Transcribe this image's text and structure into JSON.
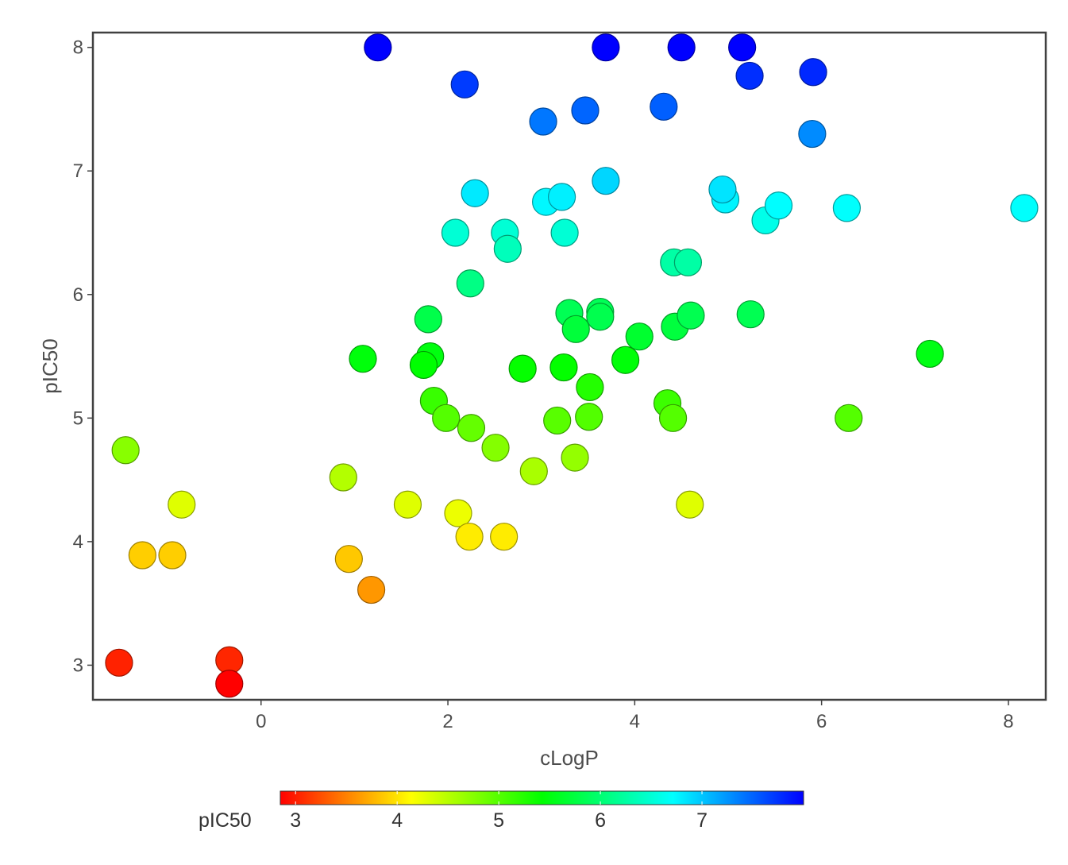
{
  "chart_data": {
    "type": "scatter",
    "xlabel": "cLogP",
    "ylabel": "pIC50",
    "xlim": [
      -1.8,
      8.4
    ],
    "ylim": [
      2.72,
      8.12
    ],
    "x_ticks": [
      0,
      2,
      4,
      6,
      8
    ],
    "y_ticks": [
      3,
      4,
      5,
      6,
      7,
      8
    ],
    "grid": false,
    "colorbar": {
      "label": "pIC50",
      "range": [
        2.85,
        8.0
      ],
      "ticks": [
        3,
        4,
        5,
        6,
        7
      ],
      "colors": [
        "#ff0000",
        "#ffff00",
        "#00ff00",
        "#00ffff",
        "#0000ff"
      ],
      "placement": "bottom"
    },
    "points": [
      {
        "x": 1.25,
        "y": 8.0
      },
      {
        "x": 3.69,
        "y": 8.0
      },
      {
        "x": 4.5,
        "y": 8.0
      },
      {
        "x": 5.15,
        "y": 8.0
      },
      {
        "x": 2.18,
        "y": 7.7
      },
      {
        "x": 5.23,
        "y": 7.77
      },
      {
        "x": 5.91,
        "y": 7.8
      },
      {
        "x": 3.02,
        "y": 7.4
      },
      {
        "x": 3.47,
        "y": 7.49
      },
      {
        "x": 4.31,
        "y": 7.52
      },
      {
        "x": 5.9,
        "y": 7.3
      },
      {
        "x": 2.29,
        "y": 6.82
      },
      {
        "x": 3.05,
        "y": 6.75
      },
      {
        "x": 3.22,
        "y": 6.79
      },
      {
        "x": 3.69,
        "y": 6.92
      },
      {
        "x": 4.97,
        "y": 6.77
      },
      {
        "x": 4.94,
        "y": 6.85
      },
      {
        "x": 5.4,
        "y": 6.6
      },
      {
        "x": 5.54,
        "y": 6.72
      },
      {
        "x": 6.27,
        "y": 6.7
      },
      {
        "x": 8.17,
        "y": 6.7
      },
      {
        "x": 2.08,
        "y": 6.5
      },
      {
        "x": 2.61,
        "y": 6.5
      },
      {
        "x": 2.64,
        "y": 6.37
      },
      {
        "x": 3.25,
        "y": 6.5
      },
      {
        "x": 4.42,
        "y": 6.26
      },
      {
        "x": 4.57,
        "y": 6.26
      },
      {
        "x": 2.24,
        "y": 6.09
      },
      {
        "x": 1.79,
        "y": 5.8
      },
      {
        "x": 3.3,
        "y": 5.85
      },
      {
        "x": 3.37,
        "y": 5.72
      },
      {
        "x": 3.63,
        "y": 5.86
      },
      {
        "x": 3.63,
        "y": 5.82
      },
      {
        "x": 4.05,
        "y": 5.66
      },
      {
        "x": 4.43,
        "y": 5.74
      },
      {
        "x": 4.6,
        "y": 5.83
      },
      {
        "x": 5.24,
        "y": 5.84
      },
      {
        "x": 1.09,
        "y": 5.48
      },
      {
        "x": 1.81,
        "y": 5.5
      },
      {
        "x": 1.74,
        "y": 5.43
      },
      {
        "x": 2.8,
        "y": 5.4
      },
      {
        "x": 3.24,
        "y": 5.41
      },
      {
        "x": 3.9,
        "y": 5.47
      },
      {
        "x": 3.52,
        "y": 5.25
      },
      {
        "x": 7.16,
        "y": 5.52
      },
      {
        "x": 1.85,
        "y": 5.14
      },
      {
        "x": 1.98,
        "y": 5.0
      },
      {
        "x": 2.25,
        "y": 4.92
      },
      {
        "x": 3.17,
        "y": 4.98
      },
      {
        "x": 3.51,
        "y": 5.01
      },
      {
        "x": 4.35,
        "y": 5.12
      },
      {
        "x": 4.41,
        "y": 5.0
      },
      {
        "x": 6.29,
        "y": 5.0
      },
      {
        "x": -1.45,
        "y": 4.74
      },
      {
        "x": 2.51,
        "y": 4.76
      },
      {
        "x": 2.92,
        "y": 4.57
      },
      {
        "x": 3.36,
        "y": 4.68
      },
      {
        "x": 0.88,
        "y": 4.52
      },
      {
        "x": -0.85,
        "y": 4.3
      },
      {
        "x": 1.57,
        "y": 4.3
      },
      {
        "x": 2.11,
        "y": 4.23
      },
      {
        "x": 4.59,
        "y": 4.3
      },
      {
        "x": 2.23,
        "y": 4.04
      },
      {
        "x": 2.6,
        "y": 4.04
      },
      {
        "x": -1.27,
        "y": 3.89
      },
      {
        "x": -0.95,
        "y": 3.89
      },
      {
        "x": 0.94,
        "y": 3.86
      },
      {
        "x": 1.18,
        "y": 3.61
      },
      {
        "x": -1.52,
        "y": 3.02
      },
      {
        "x": -0.34,
        "y": 3.04
      },
      {
        "x": -0.34,
        "y": 2.85
      }
    ]
  }
}
